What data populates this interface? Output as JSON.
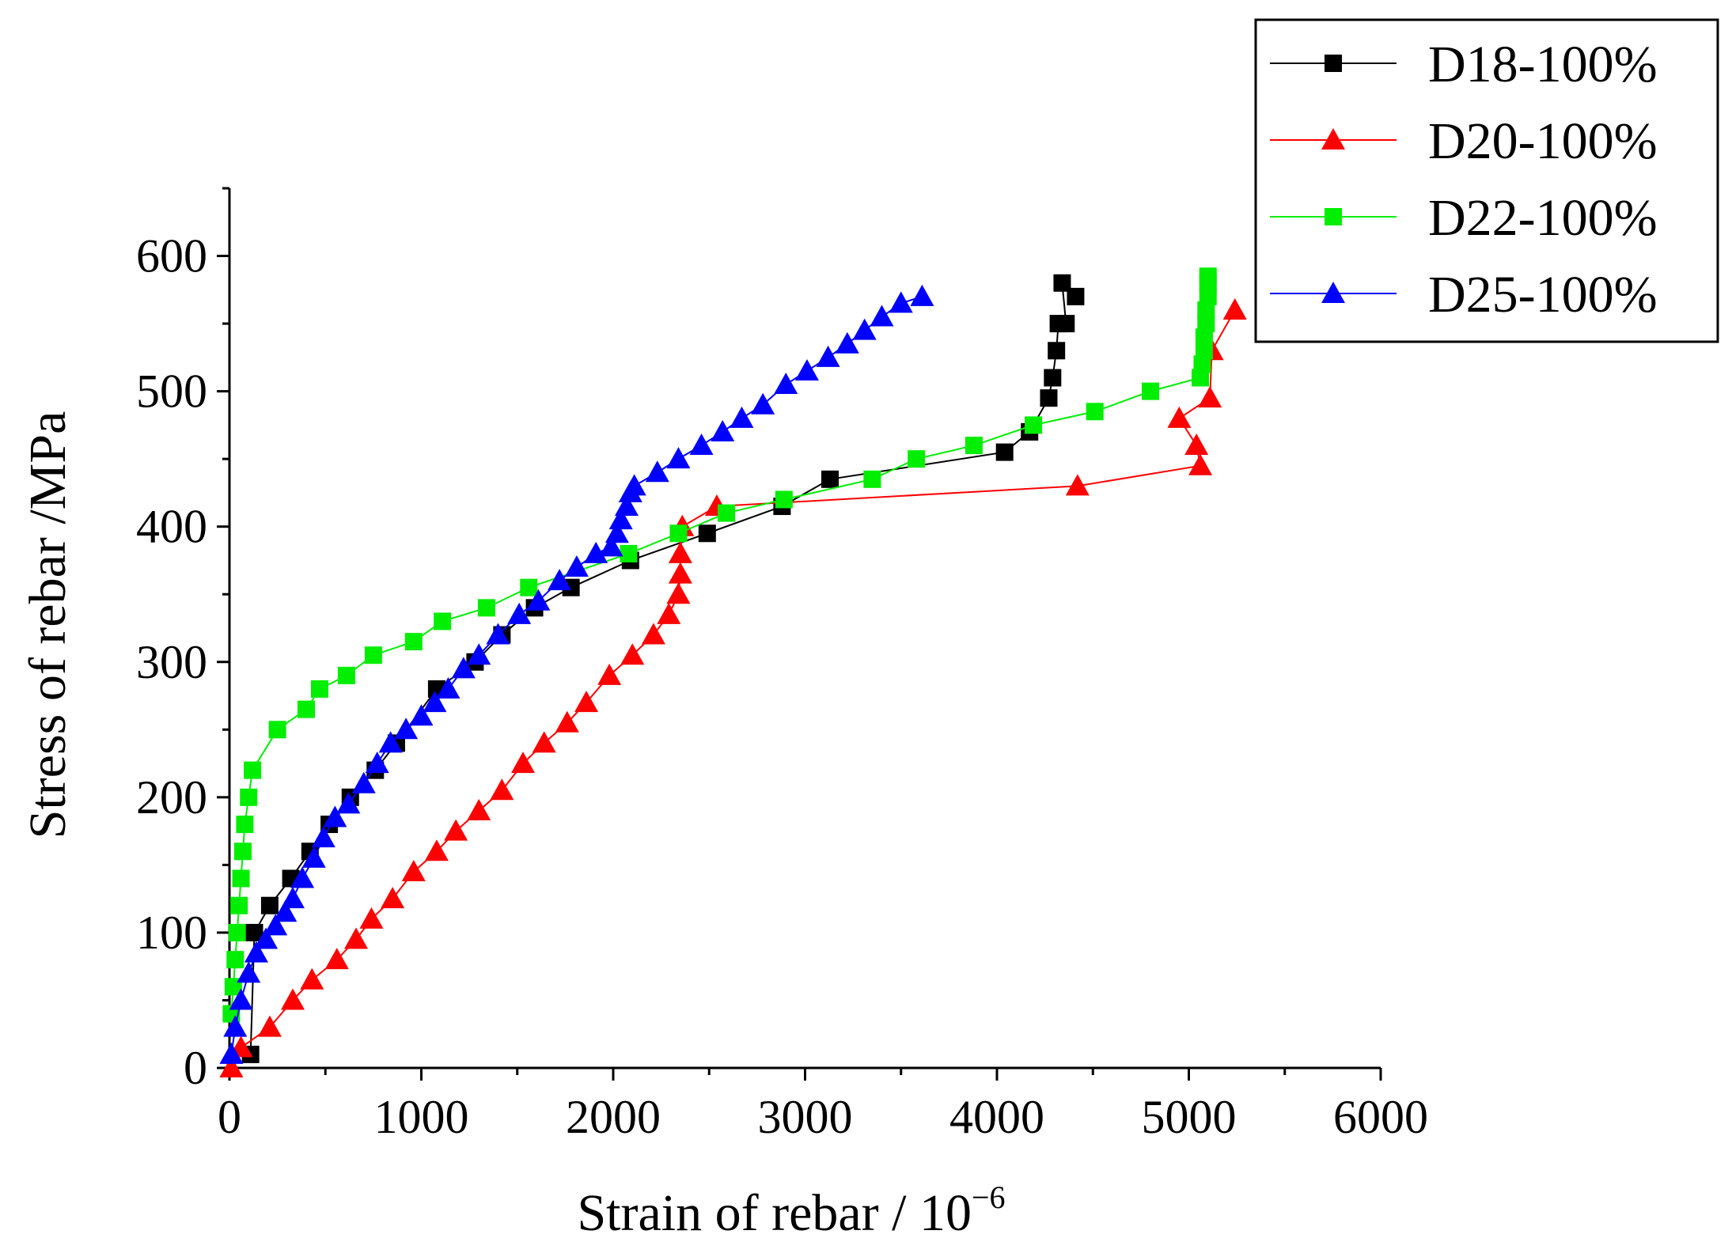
{
  "chart_data": {
    "type": "line",
    "title": "",
    "xlabel": "Strain of rebar / 10",
    "xlabel_exponent": "−6",
    "ylabel": "Stress of rebar /MPa",
    "xlim": [
      0,
      6000
    ],
    "ylim": [
      0,
      650
    ],
    "xticks": [
      0,
      1000,
      2000,
      3000,
      4000,
      5000,
      6000
    ],
    "xtick_labels": [
      "0",
      "1000",
      "2000",
      "3000",
      "4000",
      "5000",
      "6000"
    ],
    "yticks": [
      0,
      100,
      200,
      300,
      400,
      500,
      600
    ],
    "ytick_labels": [
      "0",
      "100",
      "200",
      "300",
      "400",
      "500",
      "600"
    ],
    "grid": false,
    "legend_position": "top-right",
    "series": [
      {
        "name": "D18-100%",
        "color": "#000000",
        "marker": "square",
        "x": [
          110,
          130,
          210,
          320,
          420,
          520,
          630,
          760,
          870,
          1080,
          1280,
          1420,
          1590,
          1780,
          2090,
          2490,
          2880,
          3130,
          4040,
          4170,
          4270,
          4290,
          4310,
          4320,
          4360,
          4340,
          4410
        ],
        "y": [
          10,
          100,
          120,
          140,
          160,
          180,
          200,
          220,
          240,
          280,
          300,
          320,
          340,
          355,
          375,
          395,
          415,
          435,
          455,
          470,
          495,
          510,
          530,
          550,
          550,
          580,
          570
        ]
      },
      {
        "name": "D20-100%",
        "color": "#ff0000",
        "marker": "triangle",
        "x": [
          10,
          60,
          210,
          330,
          430,
          560,
          660,
          740,
          850,
          960,
          1080,
          1180,
          1300,
          1420,
          1530,
          1640,
          1760,
          1860,
          1980,
          2100,
          2210,
          2290,
          2340,
          2350,
          2350,
          2360,
          2540,
          4420,
          5060,
          5040,
          4950,
          5110,
          5120,
          5240
        ],
        "y": [
          0,
          15,
          30,
          50,
          65,
          80,
          95,
          110,
          125,
          145,
          160,
          175,
          190,
          205,
          225,
          240,
          255,
          270,
          290,
          305,
          320,
          335,
          350,
          365,
          380,
          400,
          415,
          430,
          445,
          460,
          480,
          495,
          530,
          560
        ]
      },
      {
        "name": "D22-100%",
        "color": "#00ee00",
        "marker": "square",
        "x": [
          10,
          20,
          30,
          40,
          50,
          60,
          70,
          80,
          100,
          120,
          250,
          400,
          470,
          610,
          750,
          960,
          1110,
          1340,
          1560,
          2080,
          2340,
          2590,
          2890,
          3350,
          3580,
          3880,
          4190,
          4510,
          4800,
          5060,
          5070,
          5080,
          5080,
          5090,
          5090,
          5100,
          5100,
          5100
        ],
        "y": [
          40,
          60,
          80,
          100,
          120,
          140,
          160,
          180,
          200,
          220,
          250,
          265,
          280,
          290,
          305,
          315,
          330,
          340,
          355,
          380,
          395,
          410,
          420,
          435,
          450,
          460,
          475,
          485,
          500,
          510,
          520,
          530,
          540,
          550,
          560,
          570,
          580,
          585
        ]
      },
      {
        "name": "D25-100%",
        "color": "#0000ff",
        "marker": "triangle",
        "x": [
          10,
          30,
          60,
          100,
          140,
          190,
          240,
          290,
          330,
          380,
          440,
          490,
          550,
          620,
          700,
          770,
          840,
          920,
          1000,
          1070,
          1140,
          1220,
          1300,
          1400,
          1510,
          1610,
          1720,
          1810,
          1910,
          1990,
          2020,
          2040,
          2070,
          2090,
          2110,
          2230,
          2340,
          2460,
          2570,
          2670,
          2780,
          2900,
          3010,
          3120,
          3220,
          3310,
          3400,
          3500,
          3610
        ],
        "y": [
          10,
          30,
          50,
          70,
          85,
          95,
          105,
          115,
          125,
          140,
          155,
          170,
          185,
          195,
          210,
          225,
          240,
          250,
          260,
          270,
          280,
          295,
          305,
          320,
          335,
          345,
          360,
          370,
          380,
          385,
          395,
          405,
          415,
          425,
          430,
          440,
          450,
          460,
          470,
          480,
          490,
          505,
          515,
          525,
          535,
          545,
          555,
          565,
          570
        ]
      }
    ]
  }
}
